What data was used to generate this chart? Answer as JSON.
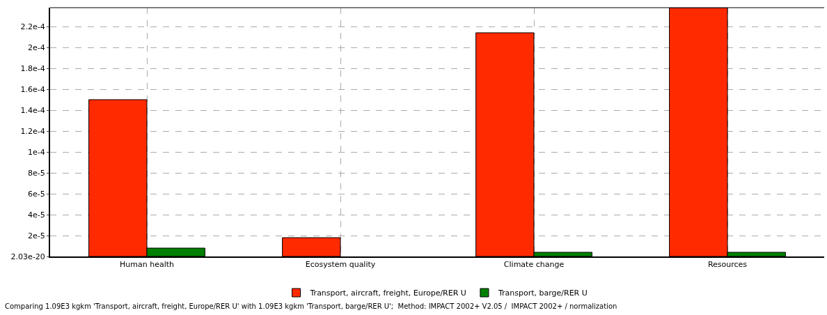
{
  "chart_data": {
    "type": "bar",
    "categories": [
      "Human health",
      "Ecosystem quality",
      "Climate change",
      "Resources"
    ],
    "series": [
      {
        "name": "Transport, aircraft, freight, Europe/RER U",
        "color": "#ff2a00",
        "values": [
          0.00015,
          1.8e-05,
          0.000214,
          0.000238
        ]
      },
      {
        "name": "Transport, barge/RER U",
        "color": "#008000",
        "values": [
          8e-06,
          null,
          4e-06,
          4e-06
        ]
      }
    ],
    "ylim": [
      2.03e-20,
      0.000238
    ],
    "yticks": [
      {
        "value": 2.03e-20,
        "label": "2.03e-20"
      },
      {
        "value": 2e-05,
        "label": "2e-5"
      },
      {
        "value": 4e-05,
        "label": "4e-5"
      },
      {
        "value": 6e-05,
        "label": "6e-5"
      },
      {
        "value": 8e-05,
        "label": "8e-5"
      },
      {
        "value": 0.0001,
        "label": "1e-4"
      },
      {
        "value": 0.00012,
        "label": "1.2e-4"
      },
      {
        "value": 0.00014,
        "label": "1.4e-4"
      },
      {
        "value": 0.00016,
        "label": "1.6e-4"
      },
      {
        "value": 0.00018,
        "label": "1.8e-4"
      },
      {
        "value": 0.0002,
        "label": "2e-4"
      },
      {
        "value": 0.00022,
        "label": "2.2e-4"
      }
    ],
    "grid": true,
    "legend": "bottom",
    "annotations": [
      "Comparing 1.09E3 kgkm 'Transport, aircraft, freight, Europe/RER U' with 1.09E3 kgkm 'Transport, barge/RER U';  Method: IMPACT 2002+ V2.05 /  IMPACT 2002+ / normalization"
    ]
  }
}
